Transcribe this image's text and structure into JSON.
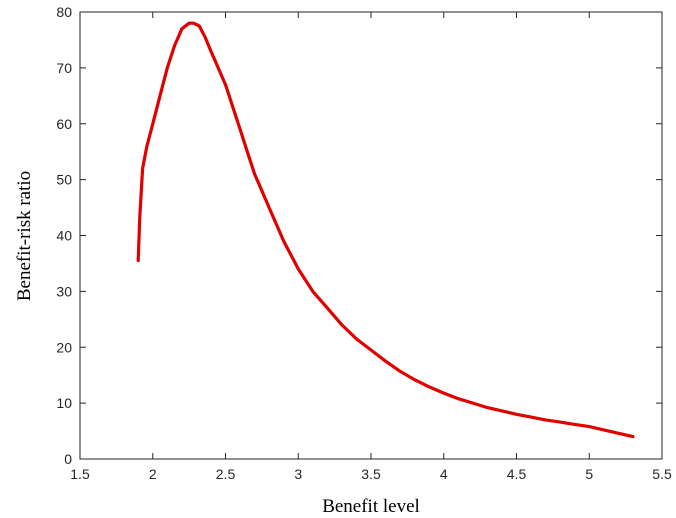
{
  "chart_data": {
    "type": "line",
    "title": "",
    "xlabel": "Benefit level",
    "ylabel": "Benefit-risk ratio",
    "xlim": [
      1.5,
      5.5
    ],
    "ylim": [
      0,
      80
    ],
    "xticks": [
      "1.5",
      "2",
      "2.5",
      "3",
      "3.5",
      "4",
      "4.5",
      "5",
      "5.5"
    ],
    "yticks": [
      "0",
      "10",
      "20",
      "30",
      "40",
      "50",
      "60",
      "70",
      "80"
    ],
    "grid": false,
    "legend": "none",
    "series": [
      {
        "color": "#e00000",
        "x": [
          1.9,
          1.91,
          1.93,
          1.96,
          2.0,
          2.05,
          2.1,
          2.15,
          2.2,
          2.25,
          2.28,
          2.32,
          2.36,
          2.4,
          2.45,
          2.5,
          2.55,
          2.6,
          2.65,
          2.7,
          2.75,
          2.8,
          2.9,
          3.0,
          3.1,
          3.2,
          3.3,
          3.4,
          3.5,
          3.6,
          3.7,
          3.8,
          3.9,
          4.0,
          4.1,
          4.2,
          4.3,
          4.4,
          4.5,
          4.6,
          4.7,
          4.8,
          4.9,
          5.0,
          5.1,
          5.2,
          5.3
        ],
        "y": [
          35.5,
          43,
          52,
          56,
          60,
          65,
          70,
          74,
          77,
          78,
          78,
          77.5,
          75.5,
          73,
          70,
          67,
          63,
          59,
          55,
          51,
          48,
          45,
          39,
          34,
          30,
          27,
          24,
          21.5,
          19.5,
          17.5,
          15.7,
          14.2,
          12.9,
          11.8,
          10.8,
          10,
          9.2,
          8.6,
          8,
          7.5,
          7,
          6.6,
          6.2,
          5.8,
          5.2,
          4.6,
          4
        ]
      }
    ]
  }
}
